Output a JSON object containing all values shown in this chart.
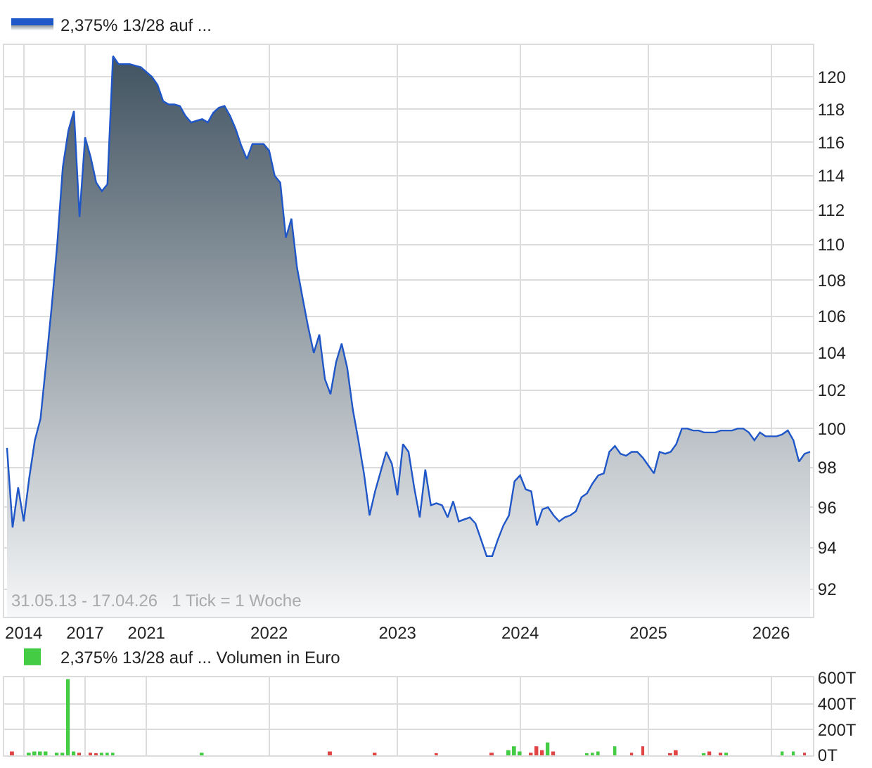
{
  "chart_data": [
    {
      "type": "area",
      "log": true,
      "grid": true,
      "legend": "top left",
      "ylim": [
        90.7,
        122
      ],
      "categories": [
        null,
        null,
        null,
        "2014",
        null,
        null,
        null,
        null,
        null,
        null,
        null,
        null,
        null,
        null,
        "2017",
        null,
        null,
        null,
        null,
        null,
        null,
        null,
        null,
        null,
        null,
        "2021",
        null,
        null,
        null,
        null,
        null,
        null,
        null,
        null,
        null,
        null,
        null,
        null,
        null,
        null,
        null,
        null,
        null,
        null,
        null,
        null,
        null,
        "2022",
        null,
        null,
        null,
        null,
        null,
        null,
        null,
        null,
        null,
        null,
        null,
        null,
        null,
        null,
        null,
        null,
        null,
        null,
        null,
        null,
        null,
        null,
        "2023",
        null,
        null,
        null,
        null,
        null,
        null,
        null,
        null,
        null,
        null,
        null,
        null,
        null,
        null,
        null,
        null,
        null,
        null,
        null,
        null,
        null,
        "2024",
        null,
        null,
        null,
        null,
        null,
        null,
        null,
        null,
        null,
        null,
        null,
        null,
        null,
        null,
        null,
        null,
        null,
        null,
        null,
        null,
        null,
        null,
        "2025",
        null,
        null,
        null,
        null,
        null,
        null,
        null,
        null,
        null,
        null,
        null,
        null,
        null,
        null,
        null,
        null,
        null,
        null,
        null,
        null,
        null,
        "2026",
        null,
        null,
        null,
        null,
        null,
        null,
        null
      ],
      "yticks": [
        92,
        94,
        96,
        98,
        100,
        102,
        104,
        106,
        108,
        110,
        112,
        114,
        116,
        118,
        120
      ],
      "annotations": [
        "31.05.13 - 17.04.26   1 Tick = 1 Woche"
      ],
      "series": [
        {
          "name": "2,375% 13/28 auf ...",
          "color": "#1f56c8",
          "values": [
            99.0,
            95.0,
            97.0,
            95.3,
            97.5,
            99.4,
            100.5,
            103.4,
            106.5,
            110.0,
            114.5,
            116.7,
            117.9,
            111.6,
            116.3,
            115.1,
            113.6,
            113.1,
            113.5,
            121.3,
            120.8,
            120.8,
            120.8,
            120.7,
            120.6,
            120.3,
            120.0,
            119.5,
            118.5,
            118.3,
            118.3,
            118.2,
            117.6,
            117.2,
            117.3,
            117.4,
            117.2,
            117.8,
            118.1,
            118.2,
            117.6,
            116.8,
            115.8,
            115.0,
            115.9,
            115.9,
            115.9,
            115.5,
            114.0,
            113.6,
            110.4,
            111.5,
            108.7,
            107.0,
            105.4,
            104.0,
            105.0,
            102.6,
            101.8,
            103.5,
            104.5,
            103.2,
            101.0,
            99.4,
            97.7,
            95.6,
            96.8,
            97.8,
            98.8,
            98.2,
            96.6,
            99.2,
            98.8,
            97.0,
            95.5,
            97.9,
            96.1,
            96.2,
            96.1,
            95.5,
            96.3,
            95.3,
            95.4,
            95.5,
            95.2,
            94.4,
            93.6,
            93.6,
            94.4,
            95.1,
            95.6,
            97.3,
            97.6,
            96.9,
            96.8,
            95.1,
            95.9,
            96.0,
            95.6,
            95.3,
            95.5,
            95.6,
            95.8,
            96.5,
            96.7,
            97.2,
            97.6,
            97.7,
            98.8,
            99.1,
            98.7,
            98.6,
            98.8,
            98.8,
            98.5,
            98.1,
            97.7,
            98.8,
            98.7,
            98.8,
            99.2,
            100.0,
            100.0,
            99.9,
            99.9,
            99.8,
            99.8,
            99.8,
            99.9,
            99.9,
            99.9,
            100.0,
            100.0,
            99.8,
            99.4,
            99.8,
            99.6,
            99.6,
            99.6,
            99.7,
            99.9,
            99.4,
            98.3,
            98.7,
            98.8
          ]
        }
      ]
    },
    {
      "type": "bar",
      "grid": true,
      "legend": "top left",
      "tick_labels": "y",
      "ylim": [
        0,
        605
      ],
      "categories": [
        null,
        null,
        null,
        "2014",
        null,
        null,
        null,
        null,
        null,
        null,
        null,
        null,
        null,
        null,
        "2017",
        null,
        null,
        null,
        null,
        null,
        null,
        null,
        null,
        null,
        null,
        "2021",
        null,
        null,
        null,
        null,
        null,
        null,
        null,
        null,
        null,
        null,
        null,
        null,
        null,
        null,
        null,
        null,
        null,
        null,
        null,
        null,
        null,
        "2022",
        null,
        null,
        null,
        null,
        null,
        null,
        null,
        null,
        null,
        null,
        null,
        null,
        null,
        null,
        null,
        null,
        null,
        null,
        null,
        null,
        null,
        null,
        "2023",
        null,
        null,
        null,
        null,
        null,
        null,
        null,
        null,
        null,
        null,
        null,
        null,
        null,
        null,
        null,
        null,
        null,
        null,
        null,
        null,
        null,
        "2024",
        null,
        null,
        null,
        null,
        null,
        null,
        null,
        null,
        null,
        null,
        null,
        null,
        null,
        null,
        null,
        null,
        null,
        null,
        null,
        null,
        null,
        null,
        "2025",
        null,
        null,
        null,
        null,
        null,
        null,
        null,
        null,
        null,
        null,
        null,
        null,
        null,
        null,
        null,
        null,
        null,
        null,
        null,
        null,
        null,
        "2026",
        null,
        null,
        null,
        null,
        null,
        null,
        null
      ],
      "yticks": [
        {
          "value": 0,
          "label": "0T"
        },
        {
          "value": 200,
          "label": "200T"
        },
        {
          "value": 400,
          "label": "400T"
        },
        {
          "value": 600,
          "label": "600T"
        }
      ],
      "series": [
        {
          "name": "2,375% 13/28 auf ... Volumen in Euro",
          "color": "#44cc44",
          "values": [
            null,
            30,
            null,
            null,
            20,
            30,
            30,
            30,
            null,
            20,
            20,
            590,
            30,
            20,
            null,
            20,
            10,
            20,
            20,
            20,
            null,
            null,
            null,
            null,
            null,
            null,
            null,
            null,
            null,
            null,
            null,
            null,
            null,
            null,
            null,
            20,
            null,
            null,
            null,
            null,
            null,
            null,
            null,
            null,
            null,
            null,
            null,
            null,
            null,
            null,
            null,
            null,
            null,
            null,
            null,
            null,
            null,
            null,
            30,
            null,
            null,
            null,
            null,
            null,
            null,
            null,
            20,
            null,
            null,
            null,
            null,
            null,
            null,
            null,
            null,
            null,
            null,
            10,
            null,
            null,
            null,
            null,
            null,
            null,
            null,
            null,
            null,
            20,
            null,
            null,
            40,
            70,
            30,
            null,
            20,
            70,
            40,
            100,
            30,
            null,
            null,
            null,
            null,
            null,
            10,
            20,
            30,
            null,
            null,
            70,
            null,
            null,
            20,
            null,
            70,
            null,
            null,
            null,
            null,
            10,
            40,
            null,
            null,
            null,
            null,
            10,
            30,
            null,
            20,
            20,
            null,
            null,
            null,
            null,
            null,
            null,
            null,
            null,
            null,
            30,
            null,
            30,
            null,
            20,
            null
          ],
          "colors": [
            "#44cc44",
            "#e04444",
            "#44cc44",
            "#44cc44",
            "#44cc44",
            "#44cc44",
            "#44cc44",
            "#44cc44",
            "#44cc44",
            "#44cc44",
            "#44cc44",
            "#44cc44",
            "#44cc44",
            "#e04444",
            "#44cc44",
            "#e04444",
            "#e04444",
            "#44cc44",
            "#44cc44",
            "#44cc44",
            "#44cc44",
            "#44cc44",
            "#44cc44",
            "#44cc44",
            "#44cc44",
            "#44cc44",
            "#44cc44",
            "#44cc44",
            "#44cc44",
            "#44cc44",
            "#44cc44",
            "#44cc44",
            "#44cc44",
            "#44cc44",
            "#44cc44",
            "#44cc44",
            "#44cc44",
            "#44cc44",
            "#44cc44",
            "#44cc44",
            "#44cc44",
            "#44cc44",
            "#44cc44",
            "#44cc44",
            "#44cc44",
            "#44cc44",
            "#44cc44",
            "#44cc44",
            "#44cc44",
            "#44cc44",
            "#44cc44",
            "#44cc44",
            "#44cc44",
            "#44cc44",
            "#44cc44",
            "#44cc44",
            "#44cc44",
            "#44cc44",
            "#e04444",
            "#44cc44",
            "#44cc44",
            "#44cc44",
            "#44cc44",
            "#44cc44",
            "#44cc44",
            "#44cc44",
            "#e04444",
            "#44cc44",
            "#44cc44",
            "#44cc44",
            "#44cc44",
            "#44cc44",
            "#44cc44",
            "#44cc44",
            "#44cc44",
            "#44cc44",
            "#44cc44",
            "#e04444",
            "#44cc44",
            "#44cc44",
            "#44cc44",
            "#44cc44",
            "#44cc44",
            "#44cc44",
            "#44cc44",
            "#44cc44",
            "#44cc44",
            "#e04444",
            "#44cc44",
            "#44cc44",
            "#44cc44",
            "#44cc44",
            "#44cc44",
            "#44cc44",
            "#e04444",
            "#e04444",
            "#e04444",
            "#44cc44",
            "#e04444",
            "#44cc44",
            "#44cc44",
            "#44cc44",
            "#44cc44",
            "#44cc44",
            "#44cc44",
            "#44cc44",
            "#44cc44",
            "#44cc44",
            "#44cc44",
            "#44cc44",
            "#44cc44",
            "#44cc44",
            "#e04444",
            "#44cc44",
            "#e04444",
            "#44cc44",
            "#44cc44",
            "#44cc44",
            "#44cc44",
            "#e04444",
            "#e04444",
            "#44cc44",
            "#44cc44",
            "#44cc44",
            "#44cc44",
            "#44cc44",
            "#e04444",
            "#44cc44",
            "#e04444",
            "#44cc44",
            "#44cc44",
            "#44cc44",
            "#44cc44",
            "#44cc44",
            "#44cc44",
            "#44cc44",
            "#44cc44",
            "#44cc44",
            "#44cc44",
            "#44cc44",
            "#44cc44",
            "#44cc44",
            "#44cc44",
            "#e04444",
            "#44cc44"
          ]
        }
      ]
    }
  ]
}
